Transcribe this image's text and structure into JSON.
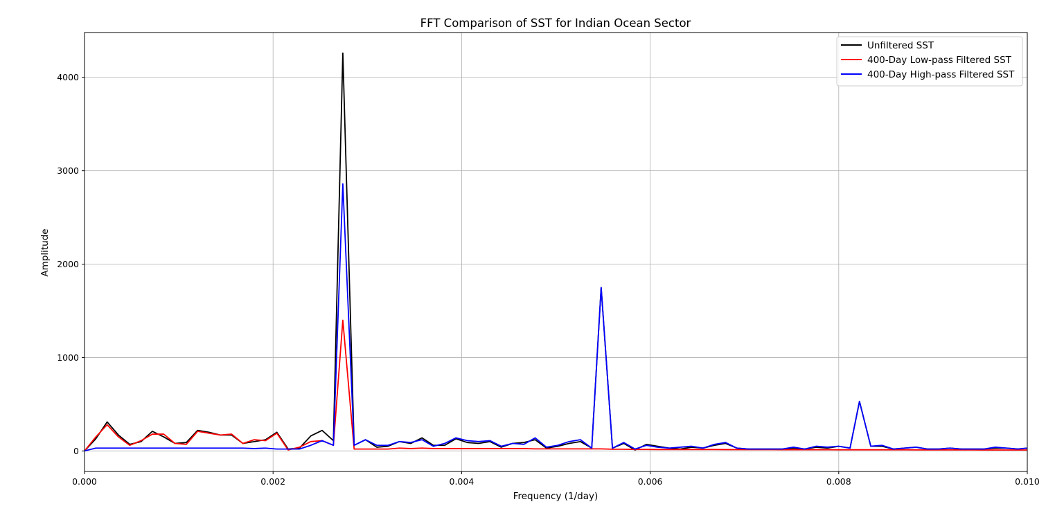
{
  "chart_data": {
    "type": "line",
    "title": "FFT Comparison of SST for Indian Ocean Sector",
    "xlabel": "Frequency (1/day)",
    "ylabel": "Amplitude",
    "xlim": [
      0.0,
      0.01
    ],
    "ylim": [
      -220,
      4480
    ],
    "xticks": [
      0.0,
      0.002,
      0.004,
      0.006,
      0.008,
      0.01
    ],
    "xtick_labels": [
      "0.000",
      "0.002",
      "0.004",
      "0.006",
      "0.008",
      "0.010"
    ],
    "yticks": [
      0,
      1000,
      2000,
      3000,
      4000
    ],
    "ytick_labels": [
      "0",
      "1000",
      "2000",
      "3000",
      "4000"
    ],
    "grid": true,
    "legend_position": "top-right",
    "x": [
      0.0,
      0.00012,
      0.00024,
      0.00036,
      0.00048,
      0.0006,
      0.00072,
      0.00084,
      0.00096,
      0.00108,
      0.0012,
      0.00132,
      0.00144,
      0.00156,
      0.00168,
      0.0018,
      0.00192,
      0.00204,
      0.00216,
      0.00228,
      0.0024,
      0.00252,
      0.00264,
      0.00274,
      0.00286,
      0.00298,
      0.0031,
      0.00322,
      0.00334,
      0.00346,
      0.00358,
      0.0037,
      0.00382,
      0.00394,
      0.00406,
      0.00418,
      0.0043,
      0.00442,
      0.00454,
      0.00466,
      0.00478,
      0.0049,
      0.00502,
      0.00514,
      0.00526,
      0.00538,
      0.00548,
      0.0056,
      0.00572,
      0.00584,
      0.00596,
      0.00608,
      0.0062,
      0.00632,
      0.00644,
      0.00656,
      0.00668,
      0.0068,
      0.00692,
      0.00704,
      0.00716,
      0.00728,
      0.0074,
      0.00752,
      0.00764,
      0.00776,
      0.00788,
      0.008,
      0.00812,
      0.00822,
      0.00834,
      0.00846,
      0.00858,
      0.0087,
      0.00882,
      0.00894,
      0.00906,
      0.00918,
      0.0093,
      0.00942,
      0.00954,
      0.00966,
      0.00978,
      0.0099,
      0.01
    ],
    "series": [
      {
        "name": "Unfiltered SST",
        "color": "#000000",
        "values": [
          0,
          130,
          310,
          170,
          70,
          100,
          210,
          150,
          80,
          90,
          220,
          200,
          170,
          170,
          80,
          100,
          120,
          200,
          20,
          30,
          160,
          220,
          110,
          4260,
          60,
          120,
          40,
          50,
          100,
          80,
          140,
          60,
          60,
          130,
          90,
          80,
          100,
          40,
          80,
          90,
          120,
          30,
          50,
          80,
          100,
          30,
          1750,
          30,
          80,
          10,
          70,
          50,
          30,
          20,
          40,
          30,
          60,
          80,
          30,
          20,
          20,
          20,
          20,
          30,
          20,
          40,
          30,
          50,
          30,
          530,
          50,
          50,
          20,
          30,
          40,
          20,
          20,
          30,
          20,
          20,
          20,
          30,
          30,
          20,
          30
        ]
      },
      {
        "name": "400-Day Low-pass Filtered SST",
        "color": "#ff0000",
        "values": [
          0,
          150,
          280,
          150,
          60,
          110,
          180,
          180,
          80,
          70,
          210,
          190,
          170,
          180,
          80,
          120,
          110,
          190,
          10,
          40,
          100,
          110,
          60,
          1400,
          20,
          20,
          20,
          20,
          30,
          25,
          30,
          25,
          25,
          25,
          25,
          25,
          25,
          25,
          25,
          25,
          22,
          22,
          22,
          22,
          22,
          22,
          22,
          18,
          18,
          16,
          16,
          15,
          15,
          15,
          15,
          15,
          15,
          14,
          14,
          14,
          14,
          14,
          13,
          13,
          13,
          13,
          13,
          12,
          12,
          12,
          12,
          12,
          12,
          12,
          11,
          11,
          11,
          11,
          11,
          11,
          10,
          10,
          10,
          10,
          10
        ]
      },
      {
        "name": "400-Day High-pass Filtered SST",
        "color": "#0000ff",
        "values": [
          0,
          30,
          30,
          30,
          30,
          30,
          30,
          30,
          30,
          30,
          30,
          30,
          30,
          30,
          30,
          25,
          30,
          20,
          20,
          20,
          60,
          110,
          60,
          2860,
          60,
          120,
          60,
          60,
          100,
          90,
          120,
          50,
          80,
          140,
          110,
          100,
          110,
          50,
          80,
          70,
          140,
          40,
          60,
          100,
          120,
          30,
          1750,
          30,
          90,
          20,
          60,
          40,
          30,
          40,
          50,
          30,
          70,
          90,
          30,
          20,
          20,
          20,
          20,
          40,
          20,
          50,
          40,
          50,
          30,
          530,
          50,
          60,
          20,
          30,
          40,
          20,
          20,
          30,
          20,
          20,
          20,
          40,
          30,
          20,
          30
        ]
      }
    ]
  }
}
